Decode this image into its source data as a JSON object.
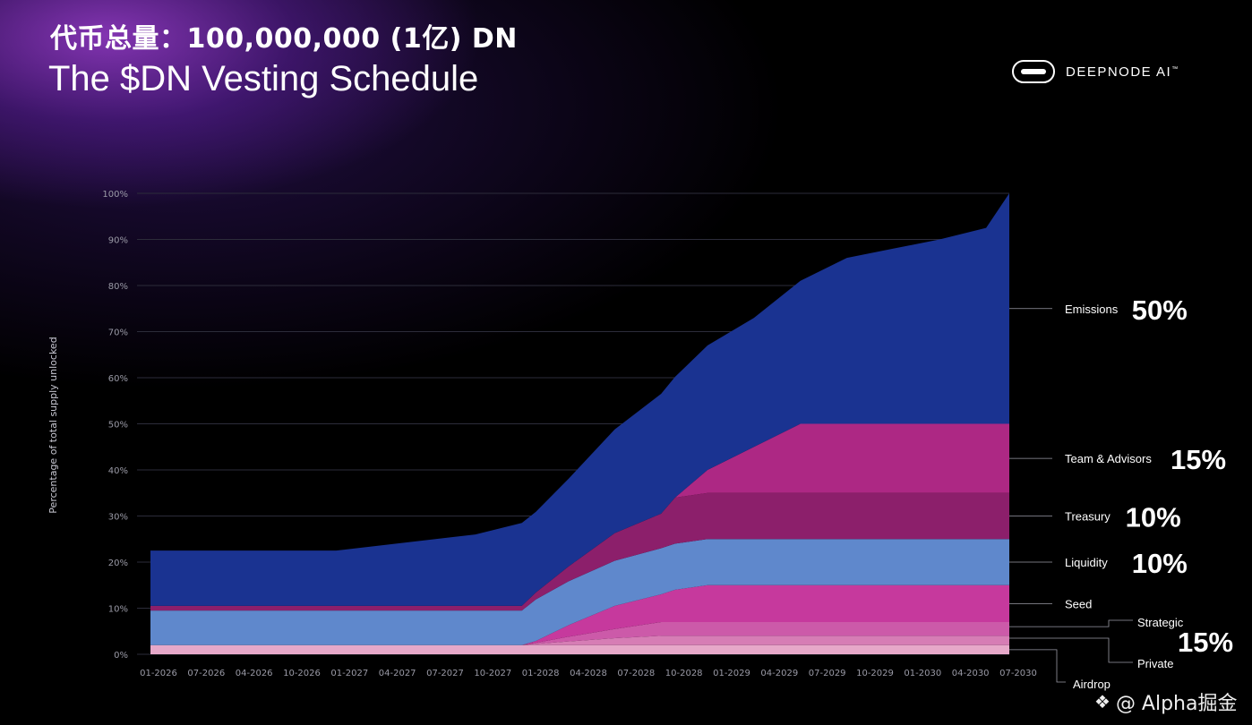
{
  "header": {
    "title_cn": "代币总量：100,000,000 (1亿) DN",
    "title_en": "The $DN Vesting Schedule",
    "brand": "DEEPNODE AI",
    "brand_tm": "™"
  },
  "watermark": {
    "text": "@ Alpha掘金",
    "icon": "diamond-logo-icon"
  },
  "colors": {
    "background": "#000000",
    "emissions": "#1a3391",
    "team": "#ad2884",
    "treasury": "#8c1f6b",
    "liquidity": "#5f88cc",
    "seed": "#c6399d",
    "strategic": "#cc5aa9",
    "private": "#d67db5",
    "airdrop": "#e6a8c9",
    "axis_text": "#9a9aa6",
    "grid": "#2c2c3a"
  },
  "chart_data": {
    "type": "area",
    "stacked": true,
    "ylabel": "Percentage of total supply unlocked",
    "ylim": [
      0,
      100
    ],
    "yticks": [
      "0%",
      "10%",
      "20%",
      "30%",
      "40%",
      "50%",
      "60%",
      "70%",
      "80%",
      "90%",
      "100%"
    ],
    "xtick_labels": [
      "01-2026",
      "07-2026",
      "04-2026",
      "10-2026",
      "01-2027",
      "04-2027",
      "07-2027",
      "10-2027",
      "01-2028",
      "04-2028",
      "07-2028",
      "10-2028",
      "01-2029",
      "04-2029",
      "07-2029",
      "10-2029",
      "01-2030",
      "04-2030",
      "07-2030"
    ],
    "x": [
      0,
      2,
      4,
      7,
      8,
      8.3,
      9,
      10,
      11,
      11.3,
      12,
      13,
      14,
      14.8,
      15,
      16,
      17,
      18,
      18.5
    ],
    "series": [
      {
        "name": "Airdrop",
        "values": [
          2,
          2,
          2,
          2,
          2,
          2,
          2,
          2,
          2,
          2,
          2,
          2,
          2,
          2,
          2,
          2,
          2,
          2,
          2
        ]
      },
      {
        "name": "Private",
        "values": [
          0,
          0,
          0,
          0,
          0,
          0.25,
          0.8,
          1.5,
          2,
          2,
          2,
          2,
          2,
          2,
          2,
          2,
          2,
          2,
          2
        ]
      },
      {
        "name": "Strategic",
        "values": [
          0,
          0,
          0,
          0,
          0,
          0.25,
          1,
          2,
          3,
          3,
          3,
          3,
          3,
          3,
          3,
          3,
          3,
          3,
          3
        ]
      },
      {
        "name": "Seed",
        "values": [
          0,
          0,
          0,
          0,
          0,
          0.4,
          2.5,
          5,
          6,
          7,
          8,
          8,
          8,
          8,
          8,
          8,
          8,
          8,
          8
        ]
      },
      {
        "name": "Liquidity",
        "values": [
          7.5,
          7.5,
          7.5,
          7.5,
          7.5,
          9,
          9.5,
          9.8,
          10,
          10,
          10,
          10,
          10,
          10,
          10,
          10,
          10,
          10,
          10
        ]
      },
      {
        "name": "Treasury",
        "values": [
          1,
          1,
          1,
          1,
          1,
          1.5,
          3.2,
          6,
          7.5,
          10,
          10,
          10,
          10,
          10,
          10,
          10,
          10,
          10,
          10
        ]
      },
      {
        "name": "Team & Advisors",
        "values": [
          0,
          0,
          0,
          0,
          0,
          0,
          0,
          0,
          0,
          0,
          5,
          10,
          15,
          15,
          15,
          15,
          15,
          15,
          15
        ]
      },
      {
        "name": "Emissions",
        "values": [
          12,
          12,
          12,
          15.5,
          18,
          17.5,
          19,
          22.5,
          26,
          26.2,
          27,
          28,
          31,
          35,
          36,
          38,
          40,
          42.5,
          50
        ]
      }
    ],
    "legend": [
      {
        "label": "Emissions",
        "pct": "50%",
        "y": 75
      },
      {
        "label": "Team & Advisors",
        "pct": "15%",
        "y": 42.5
      },
      {
        "label": "Treasury",
        "pct": "10%",
        "y": 30
      },
      {
        "label": "Liquidity",
        "pct": "10%",
        "y": 20
      },
      {
        "label": "Seed",
        "pct": "",
        "y": 11
      },
      {
        "label": "Strategic",
        "pct": "",
        "y": 6
      },
      {
        "label": "Private",
        "pct": "",
        "y": 3.5
      },
      {
        "label": "Airdrop",
        "pct": "",
        "y": 1
      }
    ],
    "group_pct": "15%"
  }
}
